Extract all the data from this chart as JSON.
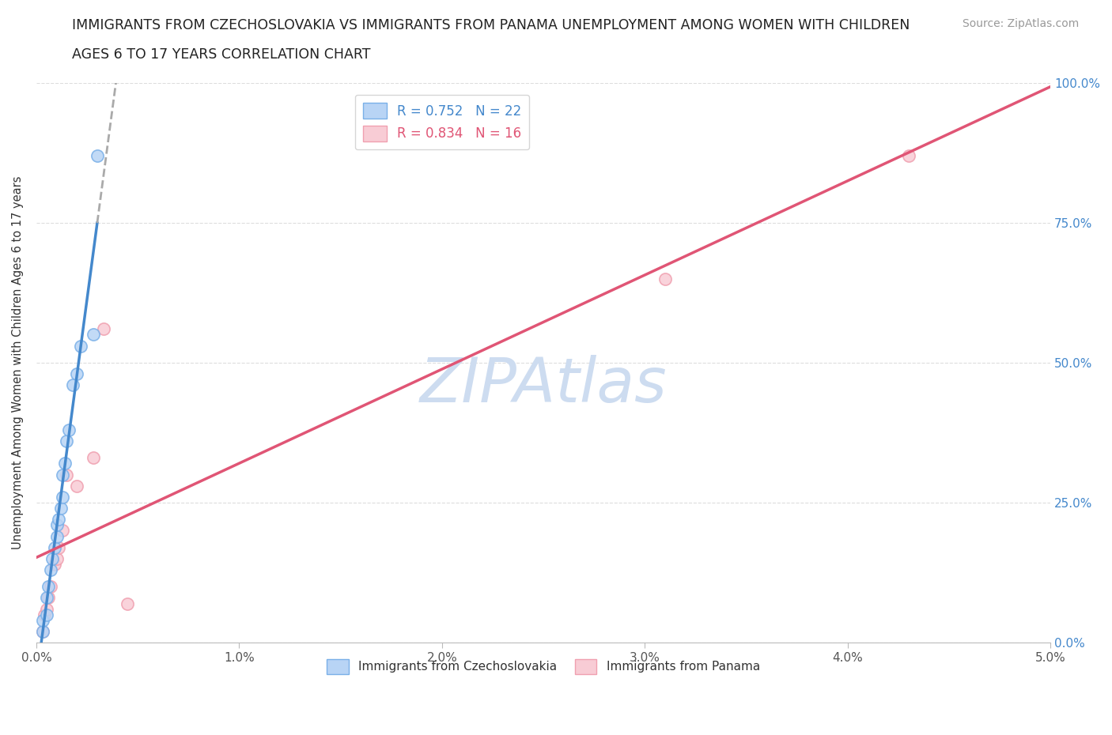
{
  "title_line1": "IMMIGRANTS FROM CZECHOSLOVAKIA VS IMMIGRANTS FROM PANAMA UNEMPLOYMENT AMONG WOMEN WITH CHILDREN",
  "title_line2": "AGES 6 TO 17 YEARS CORRELATION CHART",
  "source_text": "Source: ZipAtlas.com",
  "ylabel": "Unemployment Among Women with Children Ages 6 to 17 years",
  "xlim": [
    0.0,
    0.05
  ],
  "ylim": [
    0.0,
    1.0
  ],
  "xtick_labels": [
    "0.0%",
    "1.0%",
    "2.0%",
    "3.0%",
    "4.0%",
    "5.0%"
  ],
  "xtick_values": [
    0.0,
    0.01,
    0.02,
    0.03,
    0.04,
    0.05
  ],
  "ytick_labels_right": [
    "0.0%",
    "25.0%",
    "50.0%",
    "75.0%",
    "100.0%"
  ],
  "ytick_values": [
    0.0,
    0.25,
    0.5,
    0.75,
    1.0
  ],
  "czecho_color_edge": "#7ab0e8",
  "czecho_color_fill": "#b8d4f5",
  "panama_color_edge": "#f0a0b0",
  "panama_color_fill": "#f8ccd5",
  "czecho_R": 0.752,
  "czecho_N": 22,
  "panama_R": 0.834,
  "panama_N": 16,
  "line_blue": "#4488cc",
  "line_pink": "#e05575",
  "watermark": "ZIPAtlas",
  "watermark_color": "#cddcf0",
  "grid_color": "#dddddd",
  "czecho_x": [
    0.0003,
    0.0003,
    0.0005,
    0.0005,
    0.0006,
    0.0007,
    0.0008,
    0.0009,
    0.001,
    0.001,
    0.0011,
    0.0012,
    0.0013,
    0.0013,
    0.0014,
    0.0015,
    0.0016,
    0.0018,
    0.002,
    0.0022,
    0.0028,
    0.003
  ],
  "czecho_y": [
    0.02,
    0.04,
    0.05,
    0.08,
    0.1,
    0.13,
    0.15,
    0.17,
    0.19,
    0.21,
    0.22,
    0.24,
    0.26,
    0.3,
    0.32,
    0.36,
    0.38,
    0.46,
    0.48,
    0.53,
    0.55,
    0.87
  ],
  "panama_x": [
    0.0003,
    0.0004,
    0.0005,
    0.0006,
    0.0007,
    0.0009,
    0.001,
    0.0011,
    0.0013,
    0.0015,
    0.002,
    0.0028,
    0.0033,
    0.0045,
    0.031,
    0.043
  ],
  "panama_y": [
    0.02,
    0.05,
    0.06,
    0.08,
    0.1,
    0.14,
    0.15,
    0.17,
    0.2,
    0.3,
    0.28,
    0.33,
    0.56,
    0.07,
    0.65,
    0.87
  ],
  "czecho_marker_size": 120,
  "panama_marker_size": 120,
  "right_tick_color": "#4488cc"
}
